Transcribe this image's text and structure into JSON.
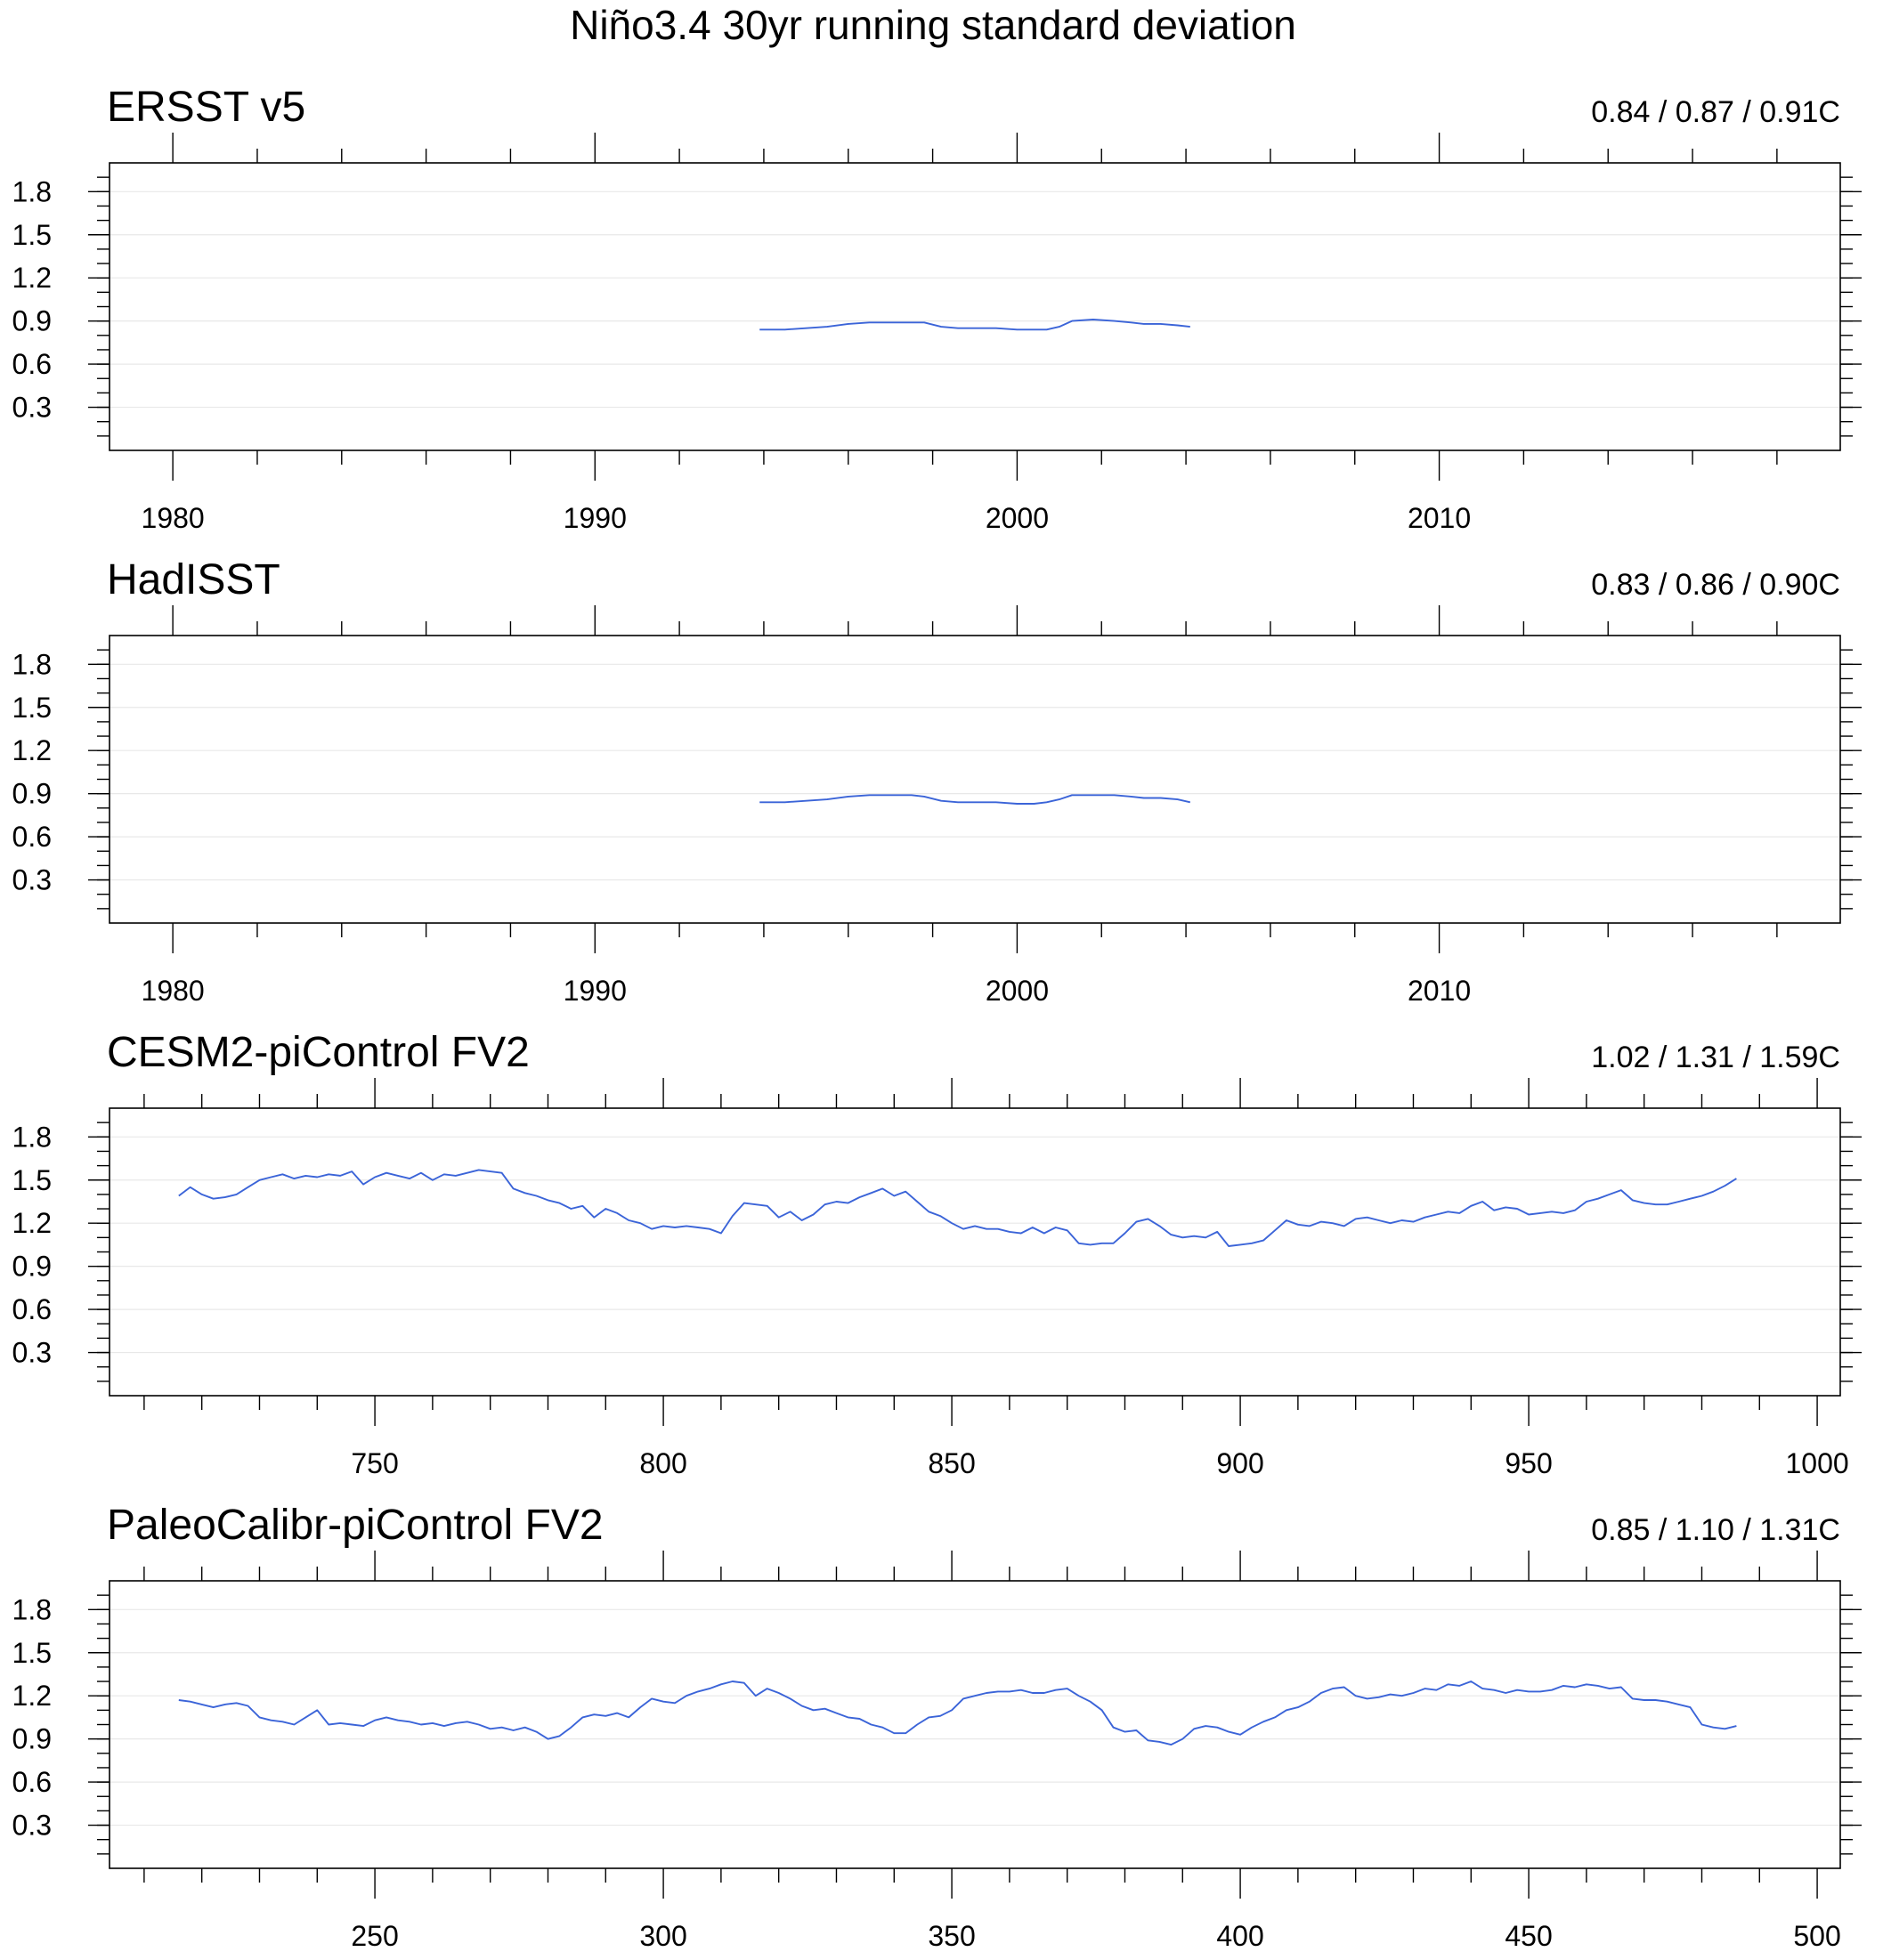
{
  "title": "Niño3.4 30yr running standard deviation",
  "chart_data": [
    {
      "type": "line",
      "title": "ERSST v5",
      "stats": "0.84 / 0.87 / 0.91C",
      "xlim": [
        1978.5,
        2019.5
      ],
      "ylim": [
        0.0,
        2.0
      ],
      "x_ticks": [
        1980,
        1990,
        2000,
        2010
      ],
      "x_tick_labels": [
        "1980",
        "1990",
        "2000",
        "2010"
      ],
      "x_minor_step": 2,
      "y_ticks": [
        0.3,
        0.6,
        0.9,
        1.2,
        1.5,
        1.8
      ],
      "y_tick_labels": [
        "0.3",
        "0.6",
        "0.9",
        "1.2",
        "1.5",
        "1.8"
      ],
      "y_minor_step": 0.1,
      "grid": "horizontal",
      "color": "#3b64d8",
      "series": [
        {
          "x": [
            1993.9,
            1994.5,
            1995.0,
            1995.5,
            1996.0,
            1996.5,
            1997.0,
            1997.5,
            1997.8,
            1998.2,
            1998.6,
            1999.0,
            1999.5,
            2000.0,
            2000.4,
            2000.7,
            2001.0,
            2001.3,
            2001.8,
            2002.3,
            2002.7,
            2003.0,
            2003.4,
            2003.8,
            2004.1
          ],
          "y": [
            0.84,
            0.84,
            0.85,
            0.86,
            0.88,
            0.89,
            0.89,
            0.89,
            0.89,
            0.86,
            0.85,
            0.85,
            0.85,
            0.84,
            0.84,
            0.84,
            0.86,
            0.9,
            0.91,
            0.9,
            0.89,
            0.88,
            0.88,
            0.87,
            0.86
          ]
        }
      ]
    },
    {
      "type": "line",
      "title": "HadISST",
      "stats": "0.83 / 0.86 / 0.90C",
      "xlim": [
        1978.5,
        2019.5
      ],
      "ylim": [
        0.0,
        2.0
      ],
      "x_ticks": [
        1980,
        1990,
        2000,
        2010
      ],
      "x_tick_labels": [
        "1980",
        "1990",
        "2000",
        "2010"
      ],
      "x_minor_step": 2,
      "y_ticks": [
        0.3,
        0.6,
        0.9,
        1.2,
        1.5,
        1.8
      ],
      "y_tick_labels": [
        "0.3",
        "0.6",
        "0.9",
        "1.2",
        "1.5",
        "1.8"
      ],
      "y_minor_step": 0.1,
      "grid": "horizontal",
      "color": "#3b64d8",
      "series": [
        {
          "x": [
            1993.9,
            1994.5,
            1995.0,
            1995.5,
            1996.0,
            1996.5,
            1997.0,
            1997.5,
            1997.8,
            1998.2,
            1998.6,
            1999.0,
            1999.5,
            2000.0,
            2000.4,
            2000.7,
            2001.0,
            2001.3,
            2001.8,
            2002.3,
            2002.7,
            2003.0,
            2003.4,
            2003.8,
            2004.1
          ],
          "y": [
            0.84,
            0.84,
            0.85,
            0.86,
            0.88,
            0.89,
            0.89,
            0.89,
            0.88,
            0.85,
            0.84,
            0.84,
            0.84,
            0.83,
            0.83,
            0.84,
            0.86,
            0.89,
            0.89,
            0.89,
            0.88,
            0.87,
            0.87,
            0.86,
            0.84
          ]
        }
      ]
    },
    {
      "type": "line",
      "title": "CESM2-piControl FV2",
      "stats": "1.02 / 1.31 / 1.59C",
      "xlim": [
        704,
        1004
      ],
      "ylim": [
        0.0,
        2.0
      ],
      "x_ticks": [
        750,
        800,
        850,
        900,
        950,
        1000
      ],
      "x_tick_labels": [
        "750",
        "800",
        "850",
        "900",
        "950",
        "1000"
      ],
      "x_minor_step": 10,
      "y_ticks": [
        0.3,
        0.6,
        0.9,
        1.2,
        1.5,
        1.8
      ],
      "y_tick_labels": [
        "0.3",
        "0.6",
        "0.9",
        "1.2",
        "1.5",
        "1.8"
      ],
      "y_minor_step": 0.1,
      "grid": "horizontal",
      "color": "#3b64d8",
      "series": [
        {
          "x": [
            716,
            718,
            720,
            722,
            724,
            726,
            728,
            730,
            732,
            734,
            736,
            738,
            740,
            742,
            744,
            746,
            748,
            750,
            752,
            754,
            756,
            758,
            760,
            762,
            764,
            766,
            768,
            770,
            772,
            774,
            776,
            778,
            780,
            782,
            784,
            786,
            788,
            790,
            792,
            794,
            796,
            798,
            800,
            802,
            804,
            806,
            808,
            810,
            812,
            814,
            816,
            818,
            820,
            822,
            824,
            826,
            828,
            830,
            832,
            834,
            836,
            838,
            840,
            842,
            844,
            846,
            848,
            850,
            852,
            854,
            856,
            858,
            860,
            862,
            864,
            866,
            868,
            870,
            872,
            874,
            876,
            878,
            880,
            882,
            884,
            886,
            888,
            890,
            892,
            894,
            896,
            898,
            900,
            902,
            904,
            906,
            908,
            910,
            912,
            914,
            916,
            918,
            920,
            922,
            924,
            926,
            928,
            930,
            932,
            934,
            936,
            938,
            940,
            942,
            944,
            946,
            948,
            950,
            952,
            954,
            956,
            958,
            960,
            962,
            964,
            966,
            968,
            970,
            972,
            974,
            976,
            978,
            980,
            982,
            984,
            986
          ],
          "y": [
            1.39,
            1.45,
            1.4,
            1.37,
            1.38,
            1.4,
            1.45,
            1.5,
            1.52,
            1.54,
            1.51,
            1.53,
            1.52,
            1.54,
            1.53,
            1.56,
            1.47,
            1.52,
            1.55,
            1.53,
            1.51,
            1.55,
            1.5,
            1.54,
            1.53,
            1.55,
            1.57,
            1.56,
            1.55,
            1.44,
            1.41,
            1.39,
            1.36,
            1.34,
            1.3,
            1.32,
            1.24,
            1.3,
            1.27,
            1.22,
            1.2,
            1.16,
            1.18,
            1.17,
            1.18,
            1.17,
            1.16,
            1.13,
            1.25,
            1.34,
            1.33,
            1.32,
            1.24,
            1.28,
            1.22,
            1.26,
            1.33,
            1.35,
            1.34,
            1.38,
            1.41,
            1.44,
            1.39,
            1.42,
            1.35,
            1.28,
            1.25,
            1.2,
            1.16,
            1.18,
            1.16,
            1.16,
            1.14,
            1.13,
            1.17,
            1.13,
            1.17,
            1.15,
            1.06,
            1.05,
            1.06,
            1.06,
            1.13,
            1.21,
            1.23,
            1.18,
            1.12,
            1.1,
            1.11,
            1.1,
            1.14,
            1.04,
            1.05,
            1.06,
            1.08,
            1.15,
            1.22,
            1.19,
            1.18,
            1.21,
            1.2,
            1.18,
            1.23,
            1.24,
            1.22,
            1.2,
            1.22,
            1.21,
            1.24,
            1.26,
            1.28,
            1.27,
            1.32,
            1.35,
            1.29,
            1.31,
            1.3,
            1.26,
            1.27,
            1.28,
            1.27,
            1.29,
            1.35,
            1.37,
            1.4,
            1.43,
            1.36,
            1.34,
            1.33,
            1.33,
            1.35,
            1.37,
            1.39,
            1.42,
            1.46,
            1.51
          ]
        }
      ]
    },
    {
      "type": "line",
      "title": "PaleoCalibr-piControl FV2",
      "stats": "0.85 / 1.10 / 1.31C",
      "xlim": [
        204,
        504
      ],
      "ylim": [
        0.0,
        2.0
      ],
      "x_ticks": [
        250,
        300,
        350,
        400,
        450,
        500
      ],
      "x_tick_labels": [
        "250",
        "300",
        "350",
        "400",
        "450",
        "500"
      ],
      "x_minor_step": 10,
      "y_ticks": [
        0.3,
        0.6,
        0.9,
        1.2,
        1.5,
        1.8
      ],
      "y_tick_labels": [
        "0.3",
        "0.6",
        "0.9",
        "1.2",
        "1.5",
        "1.8"
      ],
      "y_minor_step": 0.1,
      "grid": "horizontal",
      "color": "#3b64d8",
      "series": [
        {
          "x": [
            216,
            218,
            220,
            222,
            224,
            226,
            228,
            230,
            232,
            234,
            236,
            238,
            240,
            242,
            244,
            246,
            248,
            250,
            252,
            254,
            256,
            258,
            260,
            262,
            264,
            266,
            268,
            270,
            272,
            274,
            276,
            278,
            280,
            282,
            284,
            286,
            288,
            290,
            292,
            294,
            296,
            298,
            300,
            302,
            304,
            306,
            308,
            310,
            312,
            314,
            316,
            318,
            320,
            322,
            324,
            326,
            328,
            330,
            332,
            334,
            336,
            338,
            340,
            342,
            344,
            346,
            348,
            350,
            352,
            354,
            356,
            358,
            360,
            362,
            364,
            366,
            368,
            370,
            372,
            374,
            376,
            378,
            380,
            382,
            384,
            386,
            388,
            390,
            392,
            394,
            396,
            398,
            400,
            402,
            404,
            406,
            408,
            410,
            412,
            414,
            416,
            418,
            420,
            422,
            424,
            426,
            428,
            430,
            432,
            434,
            436,
            438,
            440,
            442,
            444,
            446,
            448,
            450,
            452,
            454,
            456,
            458,
            460,
            462,
            464,
            466,
            468,
            470,
            472,
            474,
            476,
            478,
            480,
            482,
            484,
            486
          ],
          "y": [
            1.17,
            1.16,
            1.14,
            1.12,
            1.14,
            1.15,
            1.13,
            1.05,
            1.03,
            1.02,
            1.0,
            1.05,
            1.1,
            1.0,
            1.01,
            1.0,
            0.99,
            1.03,
            1.05,
            1.03,
            1.02,
            1.0,
            1.01,
            0.99,
            1.01,
            1.02,
            1.0,
            0.97,
            0.98,
            0.96,
            0.98,
            0.95,
            0.9,
            0.92,
            0.98,
            1.05,
            1.07,
            1.06,
            1.08,
            1.05,
            1.12,
            1.18,
            1.16,
            1.15,
            1.2,
            1.23,
            1.25,
            1.28,
            1.3,
            1.29,
            1.2,
            1.25,
            1.22,
            1.18,
            1.13,
            1.1,
            1.11,
            1.08,
            1.05,
            1.04,
            1.0,
            0.98,
            0.94,
            0.94,
            1.0,
            1.05,
            1.06,
            1.1,
            1.18,
            1.2,
            1.22,
            1.23,
            1.23,
            1.24,
            1.22,
            1.22,
            1.24,
            1.25,
            1.2,
            1.16,
            1.1,
            0.98,
            0.95,
            0.96,
            0.89,
            0.88,
            0.86,
            0.9,
            0.97,
            0.99,
            0.98,
            0.95,
            0.93,
            0.98,
            1.02,
            1.05,
            1.1,
            1.12,
            1.16,
            1.22,
            1.25,
            1.26,
            1.2,
            1.18,
            1.19,
            1.21,
            1.2,
            1.22,
            1.25,
            1.24,
            1.28,
            1.27,
            1.3,
            1.25,
            1.24,
            1.22,
            1.24,
            1.23,
            1.23,
            1.24,
            1.27,
            1.26,
            1.28,
            1.27,
            1.25,
            1.26,
            1.18,
            1.17,
            1.17,
            1.16,
            1.14,
            1.12,
            1.0,
            0.98,
            0.97,
            0.99
          ]
        }
      ]
    }
  ]
}
